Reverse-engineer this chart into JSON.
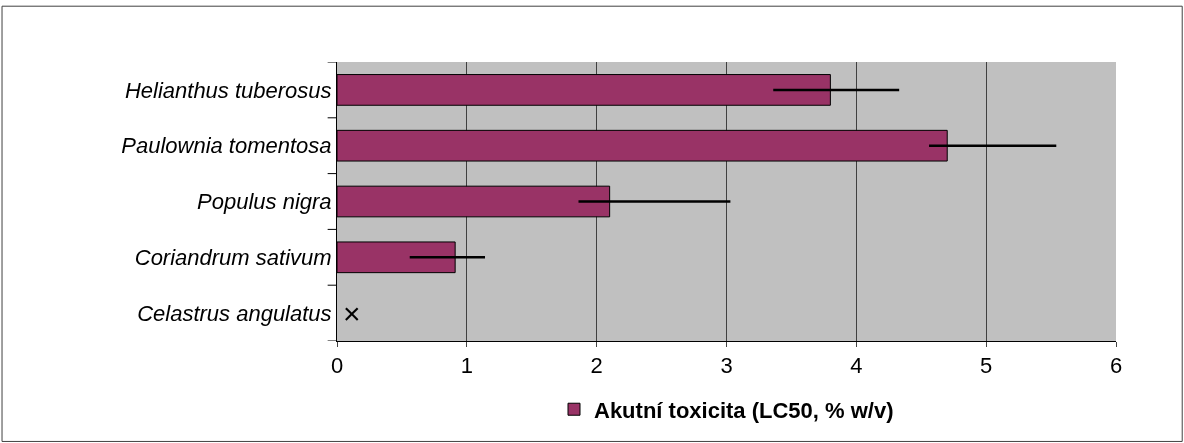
{
  "chart_data": {
    "type": "bar",
    "orientation": "horizontal",
    "categories": [
      "Helianthus tuberosus",
      "Paulownia tomentosa",
      "Populus nigra",
      "Coriandrum sativum",
      "Celastrus angulatus"
    ],
    "series": [
      {
        "name": "Akutní toxicita (LC50, % w/v)",
        "color": "#993366",
        "values": [
          3.8,
          4.7,
          2.1,
          0.91,
          null
        ],
        "errors": [
          [
            3.36,
            4.33
          ],
          [
            4.56,
            5.54
          ],
          [
            1.86,
            3.03
          ],
          [
            0.56,
            1.14
          ],
          null
        ]
      }
    ],
    "annotations": [
      "×"
    ],
    "xlim": [
      0,
      6
    ],
    "xticks": [
      0,
      1,
      2,
      3,
      4,
      5,
      6
    ],
    "grid": "x",
    "legend": "bottom"
  }
}
